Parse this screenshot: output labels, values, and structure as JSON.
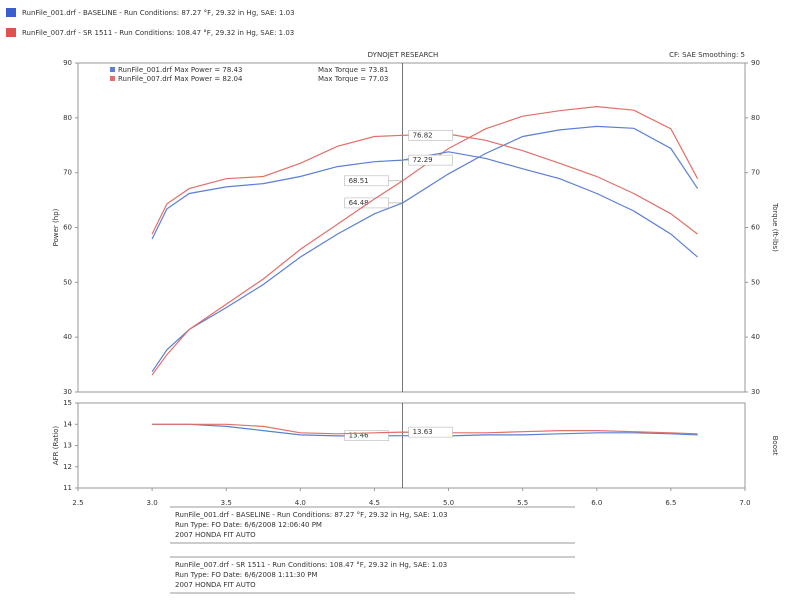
{
  "header": {
    "runs": [
      "RunFile_001.drf - BASELINE - Run Conditions: 87.27 °F, 29.32 in Hg, SAE: 1.03",
      "RunFile_007.drf - SR 1511 - Run Conditions: 108.47 °F, 29.32 in Hg, SAE: 1.03"
    ],
    "brand": "DYNOJET RESEARCH",
    "settings": "CF: SAE  Smoothing: 5"
  },
  "footer": [
    {
      "color": "#5b7fd4",
      "lines": [
        "RunFile_001.drf - BASELINE - Run Conditions: 87.27 °F, 29.32 in Hg, SAE: 1.03",
        "Run Type: FO  Date: 6/6/2008 12:06:40 PM",
        "2007 HONDA FIT AUTO"
      ]
    },
    {
      "color": "#e0706a",
      "lines": [
        "RunFile_007.drf - SR 1511 - Run Conditions: 108.47 °F, 29.32 in Hg, SAE: 1.03",
        "Run Type: FO  Date: 6/6/2008 1:11:30 PM",
        "2007 HONDA FIT AUTO"
      ]
    }
  ],
  "chart_data": [
    {
      "type": "line",
      "ylabel": "Power (hp)",
      "y2label": "Torque (ft-lbs)",
      "legend": [
        [
          "RunFile_001.drf Max Power = 78.43",
          "Max Torque = 73.81"
        ],
        [
          "RunFile_007.drf Max Power = 82.04",
          "Max Torque = 77.03"
        ]
      ],
      "x": [
        3.0,
        3.1,
        3.25,
        3.5,
        3.75,
        4.0,
        4.25,
        4.5,
        4.69,
        5.0,
        5.25,
        5.5,
        5.75,
        6.0,
        6.25,
        6.5,
        6.68
      ],
      "xlim": [
        2.5,
        7.0
      ],
      "cursor_x": 4.69,
      "ylim": [
        30,
        90
      ],
      "yticks": [
        30,
        40,
        50,
        60,
        70,
        80,
        90
      ],
      "y2lim": [
        30,
        90
      ],
      "y2ticks": [
        30,
        40,
        50,
        60,
        70,
        80,
        90
      ],
      "series": [
        {
          "color": "#5b7fd4",
          "values": [
            33.7,
            37.7,
            41.4,
            45.4,
            49.6,
            54.6,
            58.8,
            62.5,
            64.48,
            69.8,
            73.5,
            76.6,
            77.8,
            78.43,
            78.1,
            74.4,
            67.1
          ]
        },
        {
          "color": "#e0706a",
          "values": [
            33.1,
            36.8,
            41.4,
            46.0,
            50.6,
            56.0,
            60.6,
            65.2,
            68.51,
            74.4,
            78.0,
            80.3,
            81.3,
            82.04,
            81.4,
            78.0,
            68.9
          ]
        },
        {
          "color": "#5b7fd4",
          "axis": "y2",
          "values": [
            57.9,
            63.4,
            66.2,
            67.4,
            68.0,
            69.3,
            71.1,
            72.0,
            72.29,
            73.81,
            72.6,
            70.7,
            68.9,
            66.2,
            63.0,
            58.8,
            54.6
          ]
        },
        {
          "color": "#e0706a",
          "axis": "y2",
          "values": [
            58.8,
            64.3,
            67.1,
            68.9,
            69.3,
            71.7,
            74.8,
            76.6,
            76.82,
            77.03,
            75.9,
            74.0,
            71.7,
            69.3,
            66.2,
            62.5,
            58.8
          ]
        }
      ]
    },
    {
      "type": "line",
      "ylabel": "AFR (Ratio)",
      "y2label": "Boost",
      "x": [
        3.0,
        3.1,
        3.25,
        3.5,
        3.75,
        4.0,
        4.25,
        4.5,
        4.69,
        5.0,
        5.25,
        5.5,
        5.75,
        6.0,
        6.25,
        6.5,
        6.68
      ],
      "xlim": [
        2.5,
        7.0
      ],
      "cursor_x": 4.69,
      "xticks": [
        {
          "value": 2.5,
          "label": "2.5"
        },
        {
          "value": 3,
          "label": "3.0"
        },
        {
          "value": 3.5,
          "label": "3.5"
        },
        {
          "value": 4,
          "label": "4.0"
        },
        {
          "value": 4.5,
          "label": "4.5"
        },
        {
          "value": 5,
          "label": "5.0"
        },
        {
          "value": 5.5,
          "label": "5.5"
        },
        {
          "value": 6,
          "label": "6.0"
        },
        {
          "value": 6.5,
          "label": "6.5"
        },
        {
          "value": 7,
          "label": "7.0"
        }
      ],
      "ylim": [
        11,
        15
      ],
      "yticks": [
        11,
        12,
        13,
        14,
        15
      ],
      "series": [
        {
          "color": "#5b7fd4",
          "values": [
            14.0,
            14.0,
            14.0,
            13.9,
            13.7,
            13.5,
            13.45,
            13.45,
            13.46,
            13.45,
            13.5,
            13.5,
            13.55,
            13.6,
            13.6,
            13.55,
            13.5
          ]
        },
        {
          "color": "#e0706a",
          "values": [
            14.0,
            14.0,
            14.0,
            14.0,
            13.9,
            13.6,
            13.55,
            13.6,
            13.63,
            13.6,
            13.6,
            13.65,
            13.7,
            13.7,
            13.65,
            13.6,
            13.55
          ]
        }
      ]
    }
  ]
}
